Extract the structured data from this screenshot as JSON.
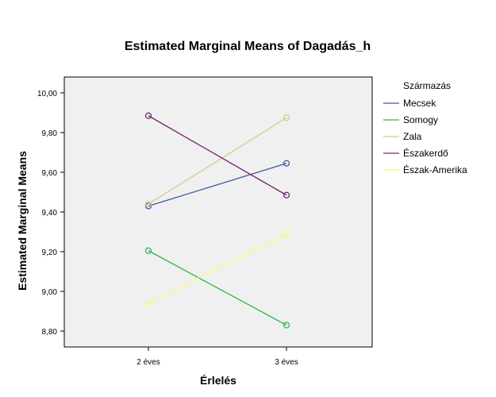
{
  "chart_data": {
    "type": "line",
    "title": "Estimated Marginal Means of Dagadás_h",
    "xlabel": "Érlelés",
    "ylabel": "Estimated Marginal Means",
    "categories": [
      "2 éves",
      "3 éves"
    ],
    "ylim": [
      8.72,
      10.08
    ],
    "yticks": [
      "8,80",
      "9,00",
      "9,20",
      "9,40",
      "9,60",
      "9,80",
      "10,00"
    ],
    "ytick_values": [
      8.8,
      9.0,
      9.2,
      9.4,
      9.6,
      9.8,
      10.0
    ],
    "legend_title": "Származás",
    "legend_position": "right",
    "plot_background": "#f0f0f0",
    "series": [
      {
        "name": "Mecsek",
        "color": "#3e58ac",
        "values": [
          9.43,
          9.645
        ]
      },
      {
        "name": "Somogy",
        "color": "#2eb848",
        "values": [
          9.205,
          8.83
        ]
      },
      {
        "name": "Zala",
        "color": "#d2cc8c",
        "values": [
          9.44,
          9.875
        ]
      },
      {
        "name": "Északerdő",
        "color": "#702871",
        "values": [
          9.885,
          9.485
        ]
      },
      {
        "name": "Észak-Amerika",
        "color": "#fbf873",
        "values": [
          8.945,
          9.29
        ]
      }
    ]
  }
}
